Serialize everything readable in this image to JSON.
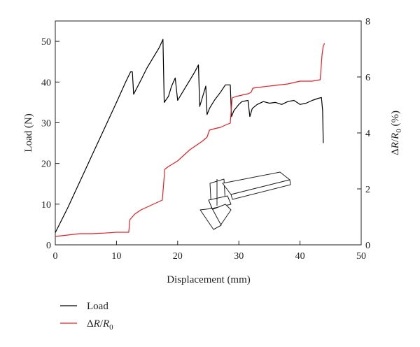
{
  "chart_data": {
    "type": "line",
    "title": "",
    "xlabel": "Displacement (mm)",
    "ylabel": "Load (N)",
    "y2label": {
      "delta": "Δ",
      "R": "R",
      "slash": "/",
      "R0": "R",
      "sub": "0",
      "unit": " (%)"
    },
    "xlim": [
      0,
      50
    ],
    "ylim": [
      0,
      55
    ],
    "y2lim": [
      0,
      8
    ],
    "x_ticks": [
      0,
      10,
      20,
      30,
      40,
      50
    ],
    "y_ticks": [
      0,
      10,
      20,
      30,
      40,
      50
    ],
    "y2_ticks": [
      0,
      2,
      4,
      6,
      8
    ],
    "grid": false,
    "legend_position": "bottom-left (below plot)",
    "series": [
      {
        "name": "Load",
        "axis": "left",
        "color": "#000000",
        "x": [
          0,
          2,
          4,
          6,
          8,
          10,
          11.5,
          12.3,
          12.6,
          12.8,
          14,
          15,
          16,
          17,
          17.6,
          17.8,
          18.5,
          19,
          19.6,
          20.0,
          21,
          22,
          22.8,
          23.4,
          23.6,
          24,
          24.6,
          24.8,
          25.2,
          26,
          27,
          27.8,
          28.6,
          28.8,
          29.2,
          30,
          30.5,
          31.5,
          31.8,
          32.2,
          33,
          34,
          35,
          36,
          37,
          38,
          39,
          40,
          41,
          42,
          43,
          43.5,
          43.7,
          43.8
        ],
        "y": [
          3,
          9,
          15.5,
          22,
          28.5,
          35,
          40,
          42.5,
          42.5,
          37,
          40.5,
          43.5,
          46,
          48.5,
          50.5,
          35,
          36.5,
          39,
          41,
          35.5,
          38,
          40.5,
          42.5,
          44.2,
          34,
          36,
          39,
          32,
          33.5,
          35.5,
          37.5,
          39.3,
          39.3,
          31.5,
          33,
          34.5,
          35.2,
          35.5,
          31.5,
          33.5,
          34.5,
          35.2,
          34.8,
          35,
          34.5,
          35.2,
          35.5,
          34.5,
          34.8,
          35.5,
          36,
          36.2,
          33,
          25
        ]
      },
      {
        "name": "ΔR/R0",
        "axis": "right",
        "color": "#ed1c24",
        "x": [
          0,
          2,
          4,
          6,
          8,
          10,
          12,
          12.2,
          13,
          14,
          15,
          16,
          17,
          17.5,
          17.9,
          18.5,
          20,
          21,
          22,
          23,
          24,
          24.8,
          25.2,
          26,
          27,
          28,
          28.6,
          28.9,
          29.5,
          30.5,
          31.5,
          32,
          32.3,
          34,
          36,
          38,
          40,
          42,
          43.3,
          43.6,
          43.8,
          44.0
        ],
        "y": [
          0.3,
          0.35,
          0.4,
          0.4,
          0.42,
          0.45,
          0.45,
          0.9,
          1.1,
          1.25,
          1.35,
          1.45,
          1.55,
          1.6,
          2.7,
          2.8,
          3.0,
          3.2,
          3.4,
          3.55,
          3.7,
          3.85,
          4.1,
          4.15,
          4.2,
          4.3,
          4.35,
          5.25,
          5.3,
          5.35,
          5.4,
          5.45,
          5.6,
          5.65,
          5.7,
          5.75,
          5.85,
          5.85,
          5.9,
          6.8,
          7.1,
          7.2
        ]
      }
    ]
  }
}
